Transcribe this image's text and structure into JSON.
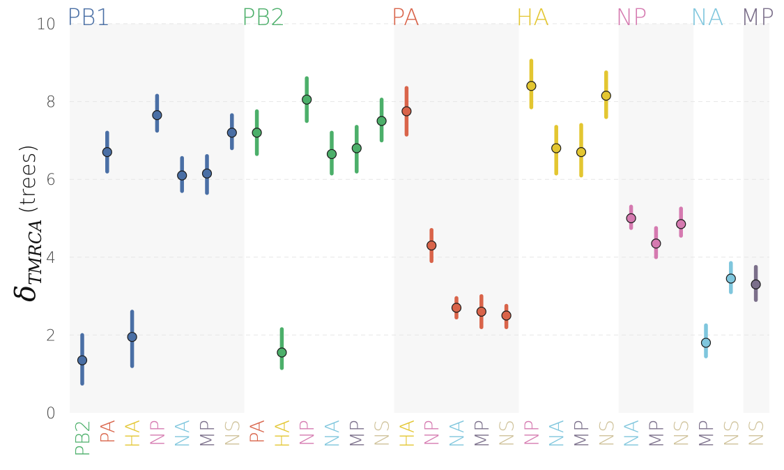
{
  "chart_data": {
    "type": "scatter",
    "ylabel_symbol": "δ",
    "ylabel_sub": "TMRCA",
    "ylabel_unit": "(trees)",
    "ylim": [
      0,
      10
    ],
    "yticks": [
      0,
      2,
      4,
      6,
      8,
      10
    ],
    "grid": "horizontal-dashed",
    "colors": {
      "PB1": "#4a6fa5",
      "PB2": "#4caf6a",
      "PA": "#d9644a",
      "HA": "#e3c631",
      "NP": "#d57ab0",
      "NA": "#7fc6dd",
      "MP": "#7b6f8a",
      "NS": "#cfc29a"
    },
    "groups": [
      {
        "name": "PB1",
        "shaded": true,
        "points": [
          {
            "target": "PB2",
            "value": 1.35,
            "low": 0.75,
            "high": 2.0
          },
          {
            "target": "PA",
            "value": 6.7,
            "low": 6.2,
            "high": 7.2
          },
          {
            "target": "HA",
            "value": 1.95,
            "low": 1.2,
            "high": 2.6
          },
          {
            "target": "NP",
            "value": 7.65,
            "low": 7.25,
            "high": 8.15
          },
          {
            "target": "NA",
            "value": 6.1,
            "low": 5.7,
            "high": 6.55
          },
          {
            "target": "MP",
            "value": 6.15,
            "low": 5.65,
            "high": 6.6
          },
          {
            "target": "NS",
            "value": 7.2,
            "low": 6.8,
            "high": 7.65
          }
        ]
      },
      {
        "name": "PB2",
        "shaded": false,
        "points": [
          {
            "target": "PA",
            "value": 7.2,
            "low": 6.65,
            "high": 7.75
          },
          {
            "target": "HA",
            "value": 1.55,
            "low": 1.15,
            "high": 2.15
          },
          {
            "target": "NP",
            "value": 8.05,
            "low": 7.5,
            "high": 8.6
          },
          {
            "target": "NA",
            "value": 6.65,
            "low": 6.15,
            "high": 7.2
          },
          {
            "target": "MP",
            "value": 6.8,
            "low": 6.2,
            "high": 7.35
          },
          {
            "target": "NS",
            "value": 7.5,
            "low": 7.0,
            "high": 8.05
          }
        ]
      },
      {
        "name": "PA",
        "shaded": true,
        "points": [
          {
            "target": "HA",
            "value": 7.75,
            "low": 7.15,
            "high": 8.35
          },
          {
            "target": "NP",
            "value": 4.3,
            "low": 3.9,
            "high": 4.7
          },
          {
            "target": "NA",
            "value": 2.7,
            "low": 2.45,
            "high": 2.95
          },
          {
            "target": "MP",
            "value": 2.6,
            "low": 2.2,
            "high": 3.0
          },
          {
            "target": "NS",
            "value": 2.5,
            "low": 2.2,
            "high": 2.75
          }
        ]
      },
      {
        "name": "HA",
        "shaded": false,
        "points": [
          {
            "target": "NP",
            "value": 8.4,
            "low": 7.85,
            "high": 9.05
          },
          {
            "target": "NA",
            "value": 6.8,
            "low": 6.15,
            "high": 7.35
          },
          {
            "target": "MP",
            "value": 6.7,
            "low": 6.1,
            "high": 7.4
          },
          {
            "target": "NS",
            "value": 8.15,
            "low": 7.6,
            "high": 8.75
          }
        ]
      },
      {
        "name": "NP",
        "shaded": true,
        "points": [
          {
            "target": "NA",
            "value": 5.0,
            "low": 4.75,
            "high": 5.3
          },
          {
            "target": "MP",
            "value": 4.35,
            "low": 4.0,
            "high": 4.75
          },
          {
            "target": "NS",
            "value": 4.85,
            "low": 4.55,
            "high": 5.25
          }
        ]
      },
      {
        "name": "NA",
        "shaded": false,
        "points": [
          {
            "target": "MP",
            "value": 1.8,
            "low": 1.45,
            "high": 2.25
          },
          {
            "target": "NS",
            "value": 3.45,
            "low": 3.1,
            "high": 3.85
          }
        ]
      },
      {
        "name": "MP",
        "shaded": true,
        "points": [
          {
            "target": "NS",
            "value": 3.3,
            "low": 2.9,
            "high": 3.75
          }
        ]
      }
    ]
  }
}
